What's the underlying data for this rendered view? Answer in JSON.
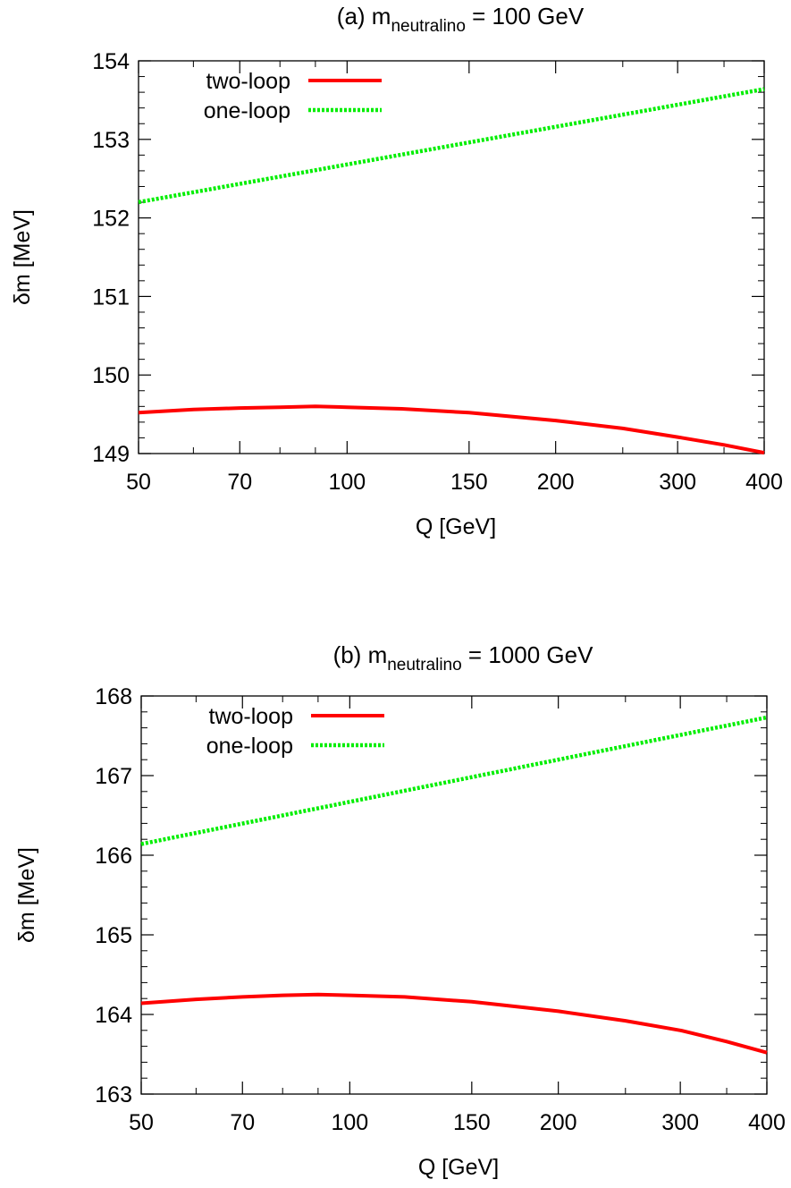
{
  "chart_data": [
    {
      "type": "line",
      "title_main": "(a) m",
      "title_sub": "neutralino",
      "title_rest": " = 100 GeV",
      "xlabel": "Q [GeV]",
      "ylabel": "δm [MeV]",
      "x_scale": "log",
      "xlim": [
        50,
        400
      ],
      "ylim": [
        149,
        154
      ],
      "x_ticks": [
        50,
        70,
        100,
        150,
        200,
        300,
        400
      ],
      "x_tick_labels": [
        "50",
        "70",
        "100",
        "150",
        "200",
        "300",
        "400"
      ],
      "y_ticks": [
        149,
        150,
        151,
        152,
        153,
        154
      ],
      "y_tick_labels": [
        "149",
        "150",
        "151",
        "152",
        "153",
        "154"
      ],
      "grid": false,
      "legend_position": "top-left",
      "series": [
        {
          "name": "two-loop",
          "color": "#ff0000",
          "style": "solid",
          "x": [
            50,
            60,
            70,
            80,
            90,
            100,
            120,
            150,
            200,
            250,
            300,
            350,
            400
          ],
          "y": [
            149.52,
            149.56,
            149.58,
            149.59,
            149.6,
            149.59,
            149.57,
            149.52,
            149.42,
            149.32,
            149.21,
            149.11,
            149.01
          ]
        },
        {
          "name": "one-loop",
          "color": "#00ee00",
          "style": "dashed",
          "x": [
            50,
            400
          ],
          "y": [
            152.2,
            153.64
          ]
        }
      ]
    },
    {
      "type": "line",
      "title_main": "(b) m",
      "title_sub": "neutralino",
      "title_rest": " = 1000 GeV",
      "xlabel": "Q [GeV]",
      "ylabel": "δm [MeV]",
      "x_scale": "log",
      "xlim": [
        50,
        400
      ],
      "ylim": [
        163,
        168
      ],
      "x_ticks": [
        50,
        70,
        100,
        150,
        200,
        300,
        400
      ],
      "x_tick_labels": [
        "50",
        "70",
        "100",
        "150",
        "200",
        "300",
        "400"
      ],
      "y_ticks": [
        163,
        164,
        165,
        166,
        167,
        168
      ],
      "y_tick_labels": [
        "163",
        "164",
        "165",
        "166",
        "167",
        "168"
      ],
      "grid": false,
      "legend_position": "top-left",
      "series": [
        {
          "name": "two-loop",
          "color": "#ff0000",
          "style": "solid",
          "x": [
            50,
            60,
            70,
            80,
            90,
            100,
            120,
            150,
            200,
            250,
            300,
            350,
            400
          ],
          "y": [
            164.14,
            164.19,
            164.22,
            164.24,
            164.25,
            164.24,
            164.22,
            164.16,
            164.04,
            163.92,
            163.8,
            163.66,
            163.52
          ]
        },
        {
          "name": "one-loop",
          "color": "#00ee00",
          "style": "dashed",
          "x": [
            50,
            400
          ],
          "y": [
            166.14,
            167.73
          ]
        }
      ]
    }
  ]
}
